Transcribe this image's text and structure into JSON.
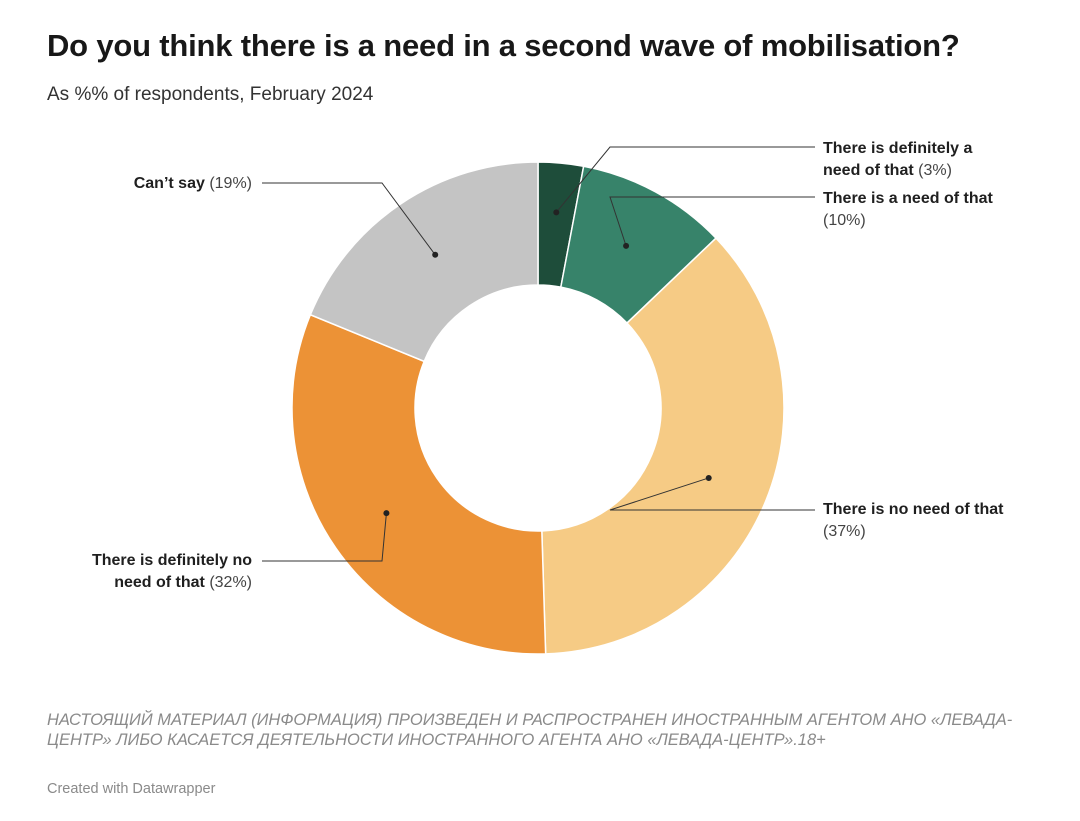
{
  "header": {
    "title": "Do you think there is a need in a second wave of mobilisation?",
    "subtitle": "As %% of respondents, February 2024"
  },
  "chart_data": {
    "type": "pie",
    "variant": "donut",
    "title": "Do you think there is a need in a second wave of mobilisation?",
    "subtitle": "As %% of respondents, February 2024",
    "start_angle_deg": 0,
    "direction": "clockwise",
    "slices": [
      {
        "label": "There is definitely a need of that",
        "value": 3,
        "value_text": "(3%)",
        "color": "#1e4d3a"
      },
      {
        "label": "There is a need of that",
        "value": 10,
        "value_text": "(10%)",
        "color": "#37836a"
      },
      {
        "label": "There is no need of that",
        "value": 37,
        "value_text": "(37%)",
        "color": "#f6cb85"
      },
      {
        "label": "There is definitely no need of that",
        "value": 32,
        "value_text": "(32%)",
        "color": "#ec9236"
      },
      {
        "label": "Can’t say",
        "value": 19,
        "value_text": "(19%)",
        "color": "#c4c4c4"
      }
    ],
    "label_lines": {
      "slice0": [
        "There is definitely a",
        "need of that"
      ],
      "slice1": [
        "There is a need of that",
        ""
      ],
      "slice2": [
        "There is no need of that",
        ""
      ],
      "slice3": [
        "There is definitely no",
        "need of that"
      ],
      "slice4": [
        "Can’t say",
        ""
      ]
    }
  },
  "footer": {
    "notice": "НАСТОЯЩИЙ МАТЕРИАЛ (ИНФОРМАЦИЯ) ПРОИЗВЕДЕН И РАСПРОСТРАНЕН ИНОСТРАННЫМ АГЕНТОМ АНО «ЛЕВАДА-ЦЕНТР» ЛИБО КАСАЕТСЯ ДЕЯТЕЛЬНОСТИ ИНОСТРАННОГО АГЕНТА АНО «ЛЕВАДА-ЦЕНТР».18+",
    "credit": "Created with Datawrapper"
  }
}
